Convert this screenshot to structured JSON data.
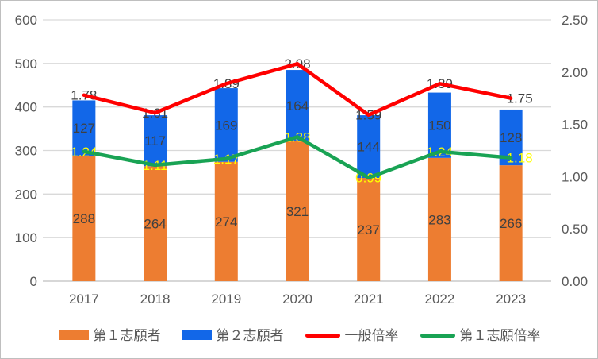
{
  "chart_data": {
    "type": "combo_stacked_bar_line",
    "title": "",
    "categories": [
      "2017",
      "2018",
      "2019",
      "2020",
      "2021",
      "2022",
      "2023"
    ],
    "series": [
      {
        "name": "第１志願者",
        "type": "bar",
        "stack": "applicants",
        "axis": "left",
        "color": "#ED7D31",
        "label_color": "#404040",
        "values": [
          288,
          264,
          274,
          321,
          237,
          283,
          266
        ]
      },
      {
        "name": "第２志願者",
        "type": "bar",
        "stack": "applicants",
        "axis": "left",
        "color": "#1267E8",
        "label_color": "#404040",
        "values": [
          127,
          117,
          169,
          164,
          144,
          150,
          128
        ]
      },
      {
        "name": "一般倍率",
        "type": "line",
        "axis": "right",
        "color": "#FF0000",
        "label_color": "#404040",
        "values": [
          1.78,
          1.61,
          1.89,
          2.08,
          1.59,
          1.89,
          1.75
        ]
      },
      {
        "name": "第１志願倍率",
        "type": "line",
        "axis": "right",
        "color": "#19A354",
        "label_color": "#FFFF00",
        "values": [
          1.24,
          1.11,
          1.17,
          1.38,
          0.99,
          1.24,
          1.18
        ]
      }
    ],
    "left_axis": {
      "min": 0,
      "max": 600,
      "step": 100,
      "tick_labels": [
        "0",
        "100",
        "200",
        "300",
        "400",
        "500",
        "600"
      ]
    },
    "right_axis": {
      "min": 0,
      "max": 2.5,
      "step": 0.5,
      "tick_labels": [
        "0.00",
        "0.50",
        "1.00",
        "1.50",
        "2.00",
        "2.50"
      ]
    },
    "grid": true,
    "legend_position": "bottom",
    "colors": {
      "gridline": "#D9D9D9",
      "axis_line": "#BFBFBF",
      "axis_text": "#595959",
      "canvas_border": "#BFBFBF",
      "background": "#FFFFFF"
    }
  }
}
